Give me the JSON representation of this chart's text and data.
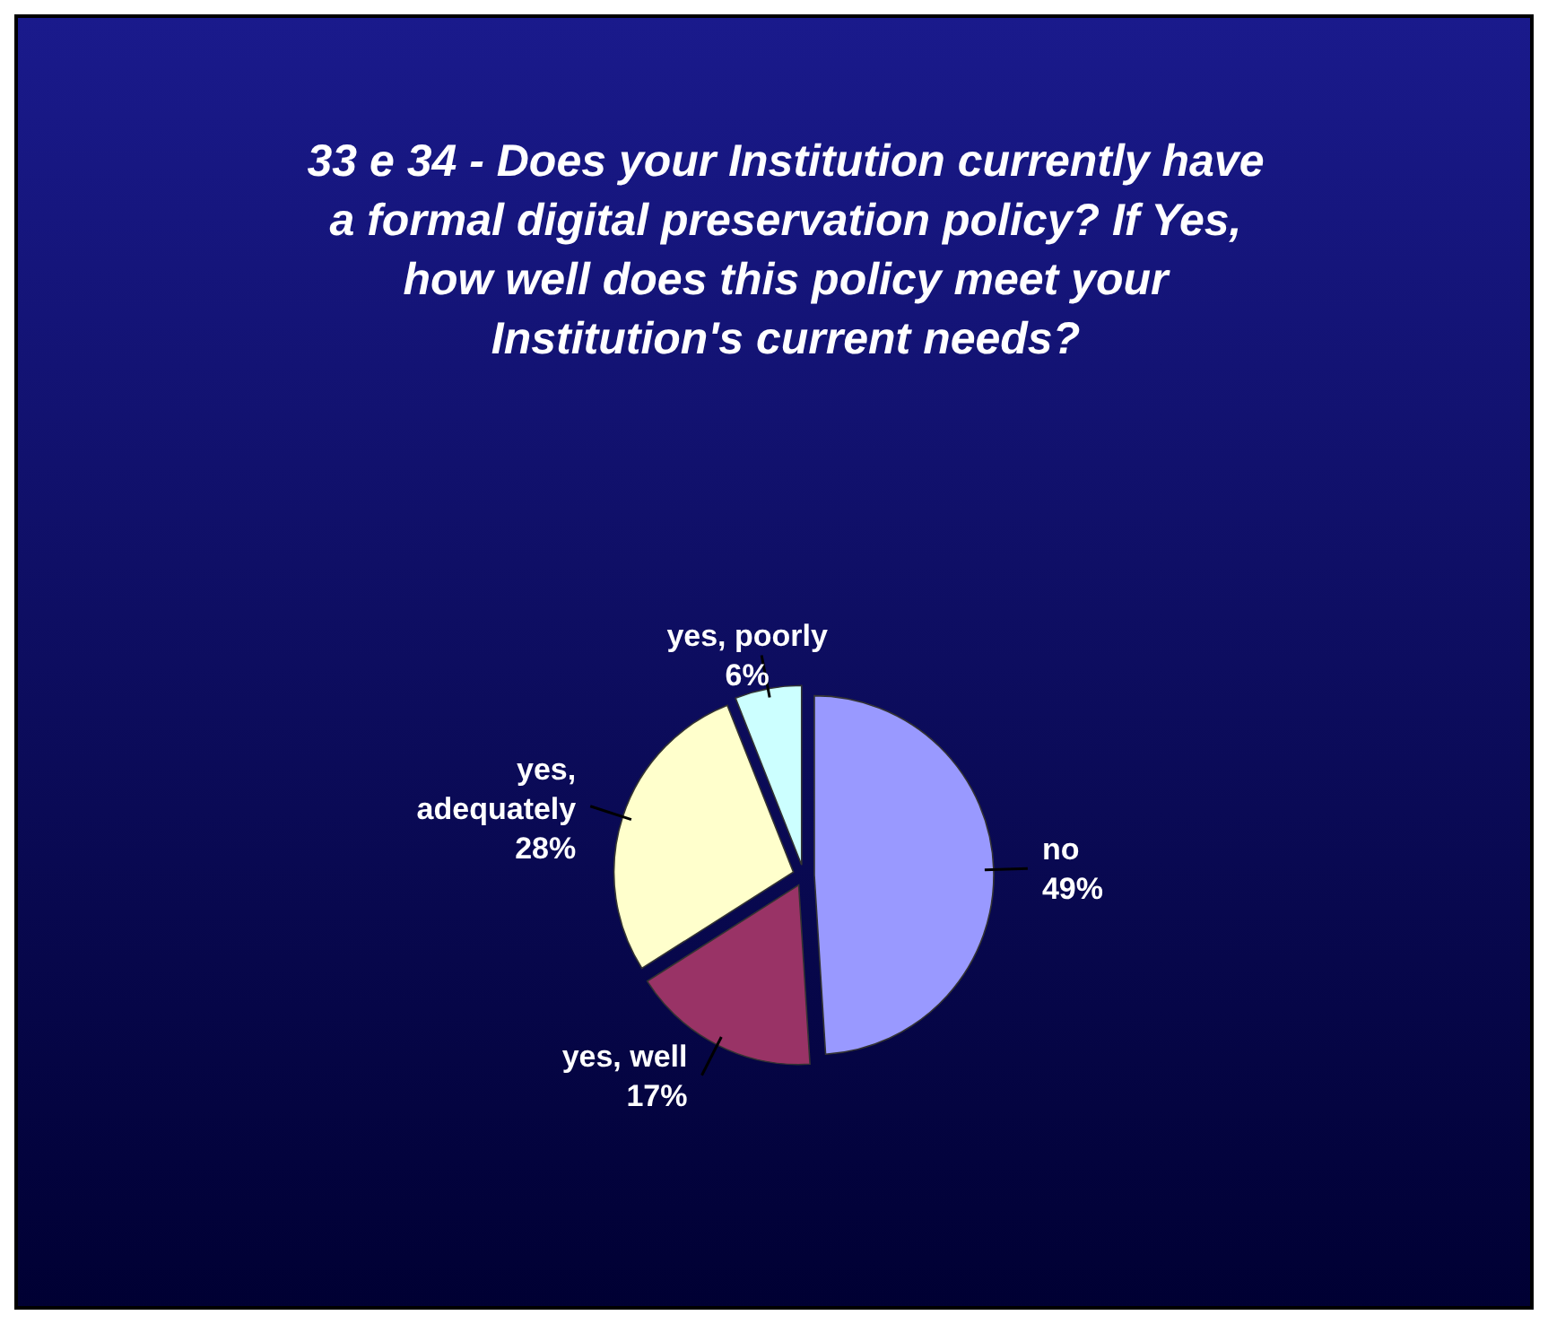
{
  "chart_data": {
    "type": "pie",
    "title": "33 e 34 - Does your Institution currently have a formal digital preservation policy? If Yes, how well does this policy meet your Institution's current needs?",
    "categories": [
      "no",
      "yes, well",
      "yes, adequately",
      "yes, poorly"
    ],
    "values": [
      49,
      17,
      28,
      6
    ],
    "value_labels": [
      "49%",
      "17%",
      "28%",
      "6%"
    ],
    "colors": [
      "#9999ff",
      "#993366",
      "#ffffcc",
      "#ccffff"
    ]
  }
}
